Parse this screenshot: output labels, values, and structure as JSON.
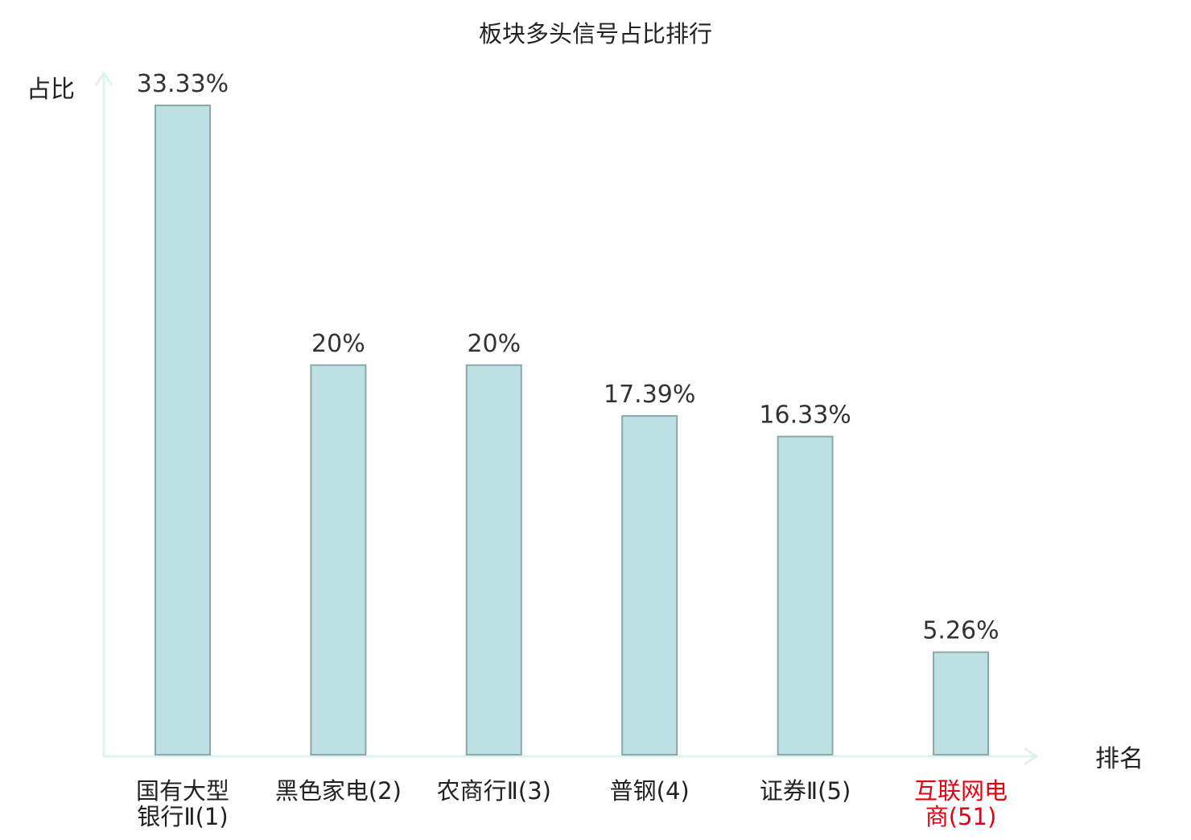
{
  "chart_data": {
    "type": "bar",
    "title": "板块多头信号占比排行",
    "ylabel": "占比",
    "xlabel": "排名",
    "ylim": [
      0,
      35
    ],
    "grid": false,
    "legend": "none",
    "categories": [
      {
        "lines": [
          "国有大型",
          "银行Ⅱ(1)"
        ],
        "highlight": false
      },
      {
        "lines": [
          "黑色家电(2)"
        ],
        "highlight": false
      },
      {
        "lines": [
          "农商行Ⅱ(3)"
        ],
        "highlight": false
      },
      {
        "lines": [
          "普钢(4)"
        ],
        "highlight": false
      },
      {
        "lines": [
          "证券Ⅱ(5)"
        ],
        "highlight": false
      },
      {
        "lines": [
          "互联网电",
          "商(51)"
        ],
        "highlight": true
      }
    ],
    "values": [
      33.33,
      20,
      20,
      17.39,
      16.33,
      5.26
    ],
    "value_labels": [
      "33.33%",
      "20%",
      "20%",
      "17.39%",
      "16.33%",
      "5.26%"
    ]
  },
  "colors": {
    "bar_fill": "#bde0e3",
    "bar_stroke": "#8aa8aa",
    "axis": "#def2ee",
    "text": "#333333",
    "highlight": "#e60012"
  }
}
